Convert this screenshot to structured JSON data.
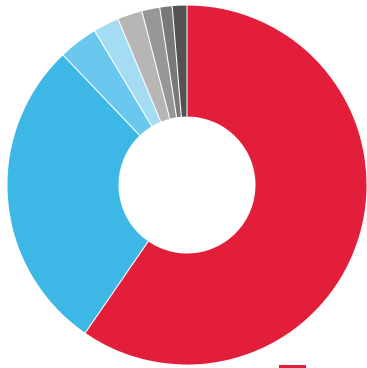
{
  "chart_data": {
    "type": "pie",
    "variant": "donut",
    "title": "",
    "legend": "bottom-right",
    "slices": [
      {
        "value": 59.0,
        "color": "#e31e3a"
      },
      {
        "value": 28.0,
        "color": "#3db8e6"
      },
      {
        "value": 3.5,
        "color": "#6ac8ee"
      },
      {
        "value": 2.3,
        "color": "#a3dcf3"
      },
      {
        "value": 2.2,
        "color": "#b8b6b5"
      },
      {
        "value": 1.6,
        "color": "#999796"
      },
      {
        "value": 1.1,
        "color": "#7b7978"
      },
      {
        "value": 1.3,
        "color": "#545253"
      }
    ]
  }
}
